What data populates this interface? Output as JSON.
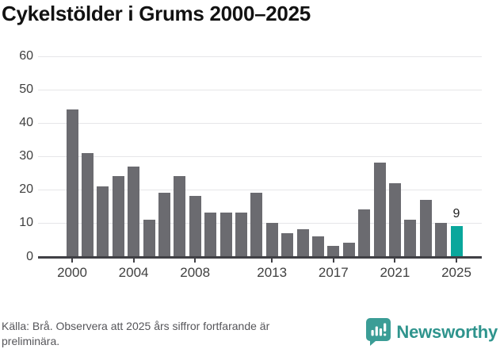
{
  "title": "Cykelstölder i Grums 2000–2025",
  "footer": {
    "source_text": "Källa: Brå. Observera att 2025 års siffror fortfarande är preliminära.",
    "brand": "Newsworthy"
  },
  "colors": {
    "bar": "#6b6b70",
    "highlight_bar": "#0aa79c",
    "grid": "#e6e6e8",
    "axis": "#404045",
    "title_text": "#121212",
    "tick_text": "#404040",
    "footer_text": "#56565a",
    "brand_icon": "#3b9d96",
    "brand_text": "#2f948d"
  },
  "icons": {
    "brand_logo": "newsworthy-speech-bubble-bar-chart-icon"
  },
  "chart_data": {
    "type": "bar",
    "title": "Cykelstölder i Grums 2000–2025",
    "x": [
      2000,
      2001,
      2002,
      2003,
      2004,
      2005,
      2006,
      2007,
      2008,
      2009,
      2010,
      2011,
      2012,
      2013,
      2014,
      2015,
      2016,
      2017,
      2018,
      2019,
      2020,
      2021,
      2022,
      2023,
      2024,
      2025
    ],
    "values": [
      44,
      31,
      21,
      24,
      27,
      11,
      19,
      24,
      18,
      13,
      13,
      13,
      19,
      10,
      7,
      8,
      6,
      3,
      4,
      14,
      28,
      22,
      11,
      17,
      10,
      9
    ],
    "x_tick_labels": [
      2000,
      2004,
      2008,
      2013,
      2017,
      2021,
      2025
    ],
    "y_ticks": [
      0,
      10,
      20,
      30,
      40,
      50,
      60
    ],
    "ylim": [
      0,
      60
    ],
    "grid": true,
    "legend": "none",
    "bar_color": "#6b6b70",
    "highlight_index": 25,
    "highlight_color": "#0aa79c",
    "data_label": {
      "index": 25,
      "text": "9"
    }
  }
}
